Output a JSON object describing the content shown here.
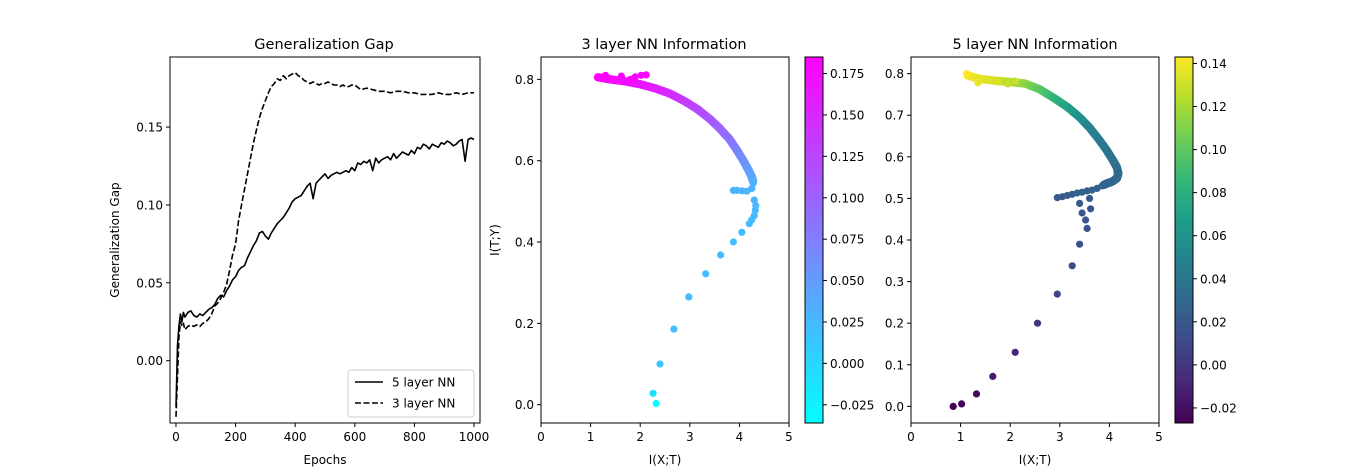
{
  "chart_data": [
    {
      "type": "line",
      "title": "Generalization Gap",
      "xlabel": "Epochs",
      "ylabel": "Generalization Gap",
      "xlim": [
        -20,
        1020
      ],
      "ylim": [
        -0.04,
        0.195
      ],
      "xticks": [
        0,
        200,
        400,
        600,
        800,
        1000
      ],
      "xtick_labels": [
        "0",
        "200",
        "400",
        "600",
        "800",
        "1000"
      ],
      "yticks": [
        0.0,
        0.05,
        0.1,
        0.15
      ],
      "ytick_labels": [
        "0.00",
        "0.05",
        "0.10",
        "0.15"
      ],
      "legend_position": "lower-right",
      "grid": false,
      "series": [
        {
          "name": "5 layer NN",
          "style": "solid",
          "color": "#000000",
          "x": [
            0,
            5,
            10,
            15,
            20,
            25,
            30,
            40,
            50,
            60,
            70,
            80,
            90,
            100,
            110,
            120,
            130,
            140,
            150,
            160,
            170,
            180,
            190,
            200,
            210,
            220,
            230,
            240,
            250,
            260,
            270,
            280,
            290,
            300,
            310,
            320,
            330,
            340,
            350,
            360,
            370,
            380,
            390,
            400,
            410,
            420,
            430,
            440,
            450,
            460,
            470,
            480,
            490,
            500,
            510,
            520,
            530,
            540,
            550,
            560,
            570,
            580,
            590,
            600,
            610,
            620,
            630,
            640,
            650,
            660,
            670,
            680,
            690,
            700,
            710,
            720,
            730,
            740,
            750,
            760,
            770,
            780,
            790,
            800,
            810,
            820,
            830,
            840,
            850,
            860,
            870,
            880,
            890,
            900,
            910,
            920,
            930,
            940,
            950,
            960,
            970,
            980,
            990,
            1000
          ],
          "y": [
            -0.03,
            0.01,
            0.022,
            0.03,
            0.025,
            0.031,
            0.028,
            0.031,
            0.032,
            0.029,
            0.028,
            0.03,
            0.029,
            0.031,
            0.033,
            0.034,
            0.036,
            0.04,
            0.042,
            0.041,
            0.045,
            0.048,
            0.052,
            0.054,
            0.058,
            0.06,
            0.061,
            0.066,
            0.07,
            0.074,
            0.077,
            0.082,
            0.083,
            0.08,
            0.078,
            0.082,
            0.085,
            0.088,
            0.09,
            0.092,
            0.095,
            0.098,
            0.102,
            0.104,
            0.105,
            0.106,
            0.109,
            0.112,
            0.114,
            0.104,
            0.114,
            0.116,
            0.118,
            0.12,
            0.117,
            0.119,
            0.12,
            0.121,
            0.12,
            0.121,
            0.122,
            0.121,
            0.124,
            0.122,
            0.127,
            0.126,
            0.128,
            0.127,
            0.129,
            0.122,
            0.13,
            0.127,
            0.129,
            0.13,
            0.131,
            0.129,
            0.133,
            0.13,
            0.132,
            0.134,
            0.133,
            0.132,
            0.135,
            0.133,
            0.137,
            0.136,
            0.139,
            0.138,
            0.136,
            0.139,
            0.138,
            0.137,
            0.14,
            0.139,
            0.141,
            0.14,
            0.138,
            0.139,
            0.141,
            0.142,
            0.128,
            0.142,
            0.143,
            0.142
          ]
        },
        {
          "name": "3 layer NN",
          "style": "dashed",
          "color": "#000000",
          "x": [
            0,
            5,
            10,
            15,
            20,
            25,
            30,
            40,
            50,
            60,
            70,
            80,
            90,
            100,
            110,
            120,
            130,
            140,
            150,
            160,
            170,
            180,
            190,
            200,
            210,
            220,
            230,
            240,
            250,
            260,
            270,
            280,
            290,
            300,
            310,
            320,
            330,
            340,
            350,
            360,
            370,
            380,
            390,
            400,
            410,
            420,
            430,
            440,
            450,
            460,
            470,
            480,
            490,
            500,
            510,
            520,
            530,
            540,
            550,
            560,
            570,
            580,
            590,
            600,
            620,
            640,
            660,
            680,
            700,
            720,
            740,
            760,
            780,
            800,
            820,
            840,
            860,
            880,
            900,
            920,
            940,
            960,
            980,
            1000
          ],
          "y": [
            -0.036,
            -0.01,
            0.015,
            0.025,
            0.022,
            0.024,
            0.02,
            0.022,
            0.023,
            0.022,
            0.023,
            0.022,
            0.024,
            0.025,
            0.027,
            0.03,
            0.035,
            0.037,
            0.04,
            0.044,
            0.049,
            0.058,
            0.068,
            0.075,
            0.09,
            0.1,
            0.11,
            0.12,
            0.13,
            0.14,
            0.148,
            0.156,
            0.162,
            0.167,
            0.172,
            0.176,
            0.178,
            0.181,
            0.18,
            0.183,
            0.181,
            0.183,
            0.184,
            0.185,
            0.183,
            0.182,
            0.18,
            0.179,
            0.178,
            0.179,
            0.178,
            0.177,
            0.178,
            0.178,
            0.179,
            0.178,
            0.177,
            0.177,
            0.176,
            0.177,
            0.176,
            0.176,
            0.177,
            0.177,
            0.174,
            0.175,
            0.174,
            0.173,
            0.173,
            0.172,
            0.173,
            0.173,
            0.172,
            0.172,
            0.171,
            0.171,
            0.171,
            0.172,
            0.171,
            0.171,
            0.172,
            0.171,
            0.172,
            0.172
          ]
        }
      ]
    },
    {
      "type": "scatter",
      "title": "3 layer NN Information",
      "xlabel": "I(X;T)",
      "ylabel": "I(T;Y)",
      "xlim": [
        0,
        5
      ],
      "ylim": [
        -0.045,
        0.855
      ],
      "xticks": [
        0,
        1,
        2,
        3,
        4,
        5
      ],
      "xtick_labels": [
        "0",
        "1",
        "2",
        "3",
        "4",
        "5"
      ],
      "yticks": [
        0.0,
        0.2,
        0.4,
        0.6,
        0.8
      ],
      "ytick_labels": [
        "0.0",
        "0.2",
        "0.4",
        "0.6",
        "0.8"
      ],
      "colormap": "cool",
      "colormap_stops": [
        "#00ffff",
        "#ff00ff"
      ],
      "colorbar_range": [
        -0.036,
        0.185
      ],
      "colorbar_ticks": [
        -0.025,
        0.0,
        0.025,
        0.05,
        0.075,
        0.1,
        0.125,
        0.15,
        0.175
      ],
      "colorbar_tick_labels": [
        "−0.025",
        "0.000",
        "0.025",
        "0.050",
        "0.075",
        "0.100",
        "0.125",
        "0.150",
        "0.175"
      ],
      "points": [
        {
          "x": 2.32,
          "y": 0.003,
          "c": -0.036
        },
        {
          "x": 2.26,
          "y": 0.028,
          "c": -0.01
        },
        {
          "x": 2.4,
          "y": 0.1,
          "c": 0.015
        },
        {
          "x": 2.68,
          "y": 0.186,
          "c": 0.022
        },
        {
          "x": 2.98,
          "y": 0.265,
          "c": 0.024
        },
        {
          "x": 3.32,
          "y": 0.322,
          "c": 0.022
        },
        {
          "x": 3.62,
          "y": 0.368,
          "c": 0.023
        },
        {
          "x": 3.88,
          "y": 0.4,
          "c": 0.023
        },
        {
          "x": 4.05,
          "y": 0.424,
          "c": 0.024
        },
        {
          "x": 4.2,
          "y": 0.445,
          "c": 0.024
        },
        {
          "x": 4.25,
          "y": 0.455,
          "c": 0.024
        },
        {
          "x": 4.3,
          "y": 0.465,
          "c": 0.025
        },
        {
          "x": 4.32,
          "y": 0.478,
          "c": 0.026
        },
        {
          "x": 4.33,
          "y": 0.49,
          "c": 0.027
        },
        {
          "x": 4.3,
          "y": 0.503,
          "c": 0.028
        },
        {
          "x": 4.15,
          "y": 0.525,
          "c": 0.03
        },
        {
          "x": 4.05,
          "y": 0.526,
          "c": 0.03
        },
        {
          "x": 3.95,
          "y": 0.527,
          "c": 0.03
        },
        {
          "x": 3.88,
          "y": 0.527,
          "c": 0.03
        },
        {
          "x": 4.25,
          "y": 0.532,
          "c": 0.031
        },
        {
          "x": 4.28,
          "y": 0.545,
          "c": 0.032
        },
        {
          "x": 1.22,
          "y": 0.805,
          "c": 0.185
        },
        {
          "x": 1.3,
          "y": 0.81,
          "c": 0.184
        },
        {
          "x": 1.62,
          "y": 0.808,
          "c": 0.183
        },
        {
          "x": 1.9,
          "y": 0.806,
          "c": 0.182
        },
        {
          "x": 2.02,
          "y": 0.81,
          "c": 0.182
        },
        {
          "x": 2.12,
          "y": 0.811,
          "c": 0.181
        },
        {
          "x": 1.8,
          "y": 0.8,
          "c": 0.181
        }
      ],
      "curve": {
        "x": [
          1.15,
          1.4,
          1.7,
          2.0,
          2.3,
          2.6,
          2.9,
          3.15,
          3.4,
          3.6,
          3.8,
          3.95,
          4.08,
          4.18,
          4.25,
          4.28
        ],
        "y": [
          0.805,
          0.8,
          0.795,
          0.788,
          0.778,
          0.765,
          0.746,
          0.727,
          0.703,
          0.68,
          0.653,
          0.626,
          0.6,
          0.578,
          0.56,
          0.548
        ],
        "c": [
          0.185,
          0.18,
          0.175,
          0.168,
          0.16,
          0.15,
          0.138,
          0.126,
          0.112,
          0.1,
          0.088,
          0.075,
          0.063,
          0.052,
          0.042,
          0.035
        ]
      }
    },
    {
      "type": "scatter",
      "title": "5 layer NN Information",
      "xlabel": "I(X;T)",
      "ylabel": "",
      "xlim": [
        0,
        5
      ],
      "ylim": [
        -0.04,
        0.84
      ],
      "xticks": [
        0,
        1,
        2,
        3,
        4,
        5
      ],
      "xtick_labels": [
        "0",
        "1",
        "2",
        "3",
        "4",
        "5"
      ],
      "yticks": [
        0.0,
        0.1,
        0.2,
        0.3,
        0.4,
        0.5,
        0.6,
        0.7,
        0.8
      ],
      "ytick_labels": [
        "0.0",
        "0.1",
        "0.2",
        "0.3",
        "0.4",
        "0.5",
        "0.6",
        "0.7",
        "0.8"
      ],
      "colormap": "viridis",
      "colormap_stops": [
        "#440154",
        "#482878",
        "#3e4989",
        "#31688e",
        "#26828e",
        "#1f9e89",
        "#35b779",
        "#6ece58",
        "#b5de2b",
        "#fde725"
      ],
      "colorbar_range": [
        -0.027,
        0.143
      ],
      "colorbar_ticks": [
        -0.02,
        0.0,
        0.02,
        0.04,
        0.06,
        0.08,
        0.1,
        0.12,
        0.14
      ],
      "colorbar_tick_labels": [
        "−0.02",
        "0.00",
        "0.02",
        "0.04",
        "0.06",
        "0.08",
        "0.10",
        "0.12",
        "0.14"
      ],
      "points": [
        {
          "x": 0.85,
          "y": 0.0,
          "c": -0.027
        },
        {
          "x": 1.02,
          "y": 0.006,
          "c": -0.025
        },
        {
          "x": 1.32,
          "y": 0.03,
          "c": -0.022
        },
        {
          "x": 1.65,
          "y": 0.072,
          "c": -0.015
        },
        {
          "x": 2.1,
          "y": 0.13,
          "c": -0.008
        },
        {
          "x": 2.55,
          "y": 0.2,
          "c": 0.0
        },
        {
          "x": 2.95,
          "y": 0.27,
          "c": 0.008
        },
        {
          "x": 3.25,
          "y": 0.338,
          "c": 0.012
        },
        {
          "x": 3.4,
          "y": 0.39,
          "c": 0.015
        },
        {
          "x": 3.55,
          "y": 0.428,
          "c": 0.017
        },
        {
          "x": 3.52,
          "y": 0.448,
          "c": 0.018
        },
        {
          "x": 3.45,
          "y": 0.465,
          "c": 0.019
        },
        {
          "x": 3.62,
          "y": 0.475,
          "c": 0.019
        },
        {
          "x": 3.4,
          "y": 0.488,
          "c": 0.02
        },
        {
          "x": 3.6,
          "y": 0.5,
          "c": 0.021
        },
        {
          "x": 2.95,
          "y": 0.502,
          "c": 0.022
        },
        {
          "x": 3.05,
          "y": 0.504,
          "c": 0.022
        },
        {
          "x": 3.15,
          "y": 0.507,
          "c": 0.023
        },
        {
          "x": 3.25,
          "y": 0.51,
          "c": 0.023
        },
        {
          "x": 3.35,
          "y": 0.513,
          "c": 0.024
        },
        {
          "x": 3.45,
          "y": 0.515,
          "c": 0.024
        },
        {
          "x": 3.55,
          "y": 0.518,
          "c": 0.025
        },
        {
          "x": 3.65,
          "y": 0.52,
          "c": 0.025
        },
        {
          "x": 3.75,
          "y": 0.524,
          "c": 0.026
        },
        {
          "x": 3.85,
          "y": 0.53,
          "c": 0.027
        },
        {
          "x": 1.12,
          "y": 0.8,
          "c": 0.143
        },
        {
          "x": 1.35,
          "y": 0.778,
          "c": 0.138
        },
        {
          "x": 1.55,
          "y": 0.785,
          "c": 0.136
        },
        {
          "x": 1.75,
          "y": 0.78,
          "c": 0.133
        },
        {
          "x": 1.95,
          "y": 0.775,
          "c": 0.13
        },
        {
          "x": 2.1,
          "y": 0.782,
          "c": 0.128
        }
      ],
      "curve": {
        "x": [
          1.15,
          1.4,
          1.7,
          2.0,
          2.3,
          2.6,
          2.9,
          3.15,
          3.4,
          3.6,
          3.8,
          3.95,
          4.08,
          4.15,
          4.18,
          4.15,
          4.05,
          3.95,
          3.88
        ],
        "y": [
          0.795,
          0.787,
          0.783,
          0.78,
          0.776,
          0.762,
          0.74,
          0.72,
          0.695,
          0.67,
          0.64,
          0.615,
          0.59,
          0.575,
          0.56,
          0.548,
          0.54,
          0.536,
          0.532
        ],
        "c": [
          0.142,
          0.137,
          0.132,
          0.125,
          0.115,
          0.1,
          0.085,
          0.072,
          0.06,
          0.05,
          0.044,
          0.04,
          0.037,
          0.035,
          0.033,
          0.031,
          0.03,
          0.029,
          0.028
        ]
      }
    }
  ]
}
